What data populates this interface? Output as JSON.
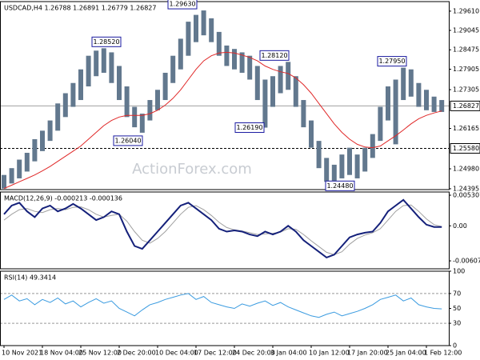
{
  "chart_data": [
    {
      "type": "candlestick",
      "title": "USDCAD,H4  1.26788 1.26891 1.26779 1.26827",
      "watermark": "ActionForex.com",
      "color": "#62788e",
      "high": [
        1.248,
        1.25,
        1.2525,
        1.2545,
        1.2585,
        1.261,
        1.264,
        1.269,
        1.272,
        1.275,
        1.279,
        1.283,
        1.2845,
        1.2852,
        1.284,
        1.28,
        1.274,
        1.268,
        1.266,
        1.27,
        1.273,
        1.278,
        1.283,
        1.288,
        1.293,
        1.295,
        1.2963,
        1.294,
        1.29,
        1.286,
        1.285,
        1.284,
        1.283,
        1.28,
        1.276,
        1.277,
        1.28,
        1.2812,
        1.277,
        1.27,
        1.264,
        1.258,
        1.253,
        1.251,
        1.254,
        1.256,
        1.254,
        1.256,
        1.26,
        1.268,
        1.274,
        1.276,
        1.2795,
        1.279,
        1.275,
        1.273,
        1.271,
        1.27
      ],
      "low": [
        1.244,
        1.2455,
        1.247,
        1.249,
        1.252,
        1.255,
        1.258,
        1.261,
        1.265,
        1.268,
        1.27,
        1.274,
        1.277,
        1.278,
        1.275,
        1.27,
        1.265,
        1.262,
        1.2604,
        1.264,
        1.267,
        1.27,
        1.275,
        1.279,
        1.283,
        1.287,
        1.289,
        1.287,
        1.283,
        1.28,
        1.279,
        1.278,
        1.276,
        1.27,
        1.2619,
        1.268,
        1.272,
        1.273,
        1.268,
        1.262,
        1.256,
        1.25,
        1.246,
        1.2448,
        1.247,
        1.248,
        1.247,
        1.249,
        1.253,
        1.258,
        1.264,
        1.257,
        1.27,
        1.271,
        1.268,
        1.267,
        1.2665,
        1.2665
      ],
      "ma_color": "#e02828",
      "ma_values": [
        1.244,
        1.245,
        1.246,
        1.247,
        1.248,
        1.2492,
        1.2505,
        1.252,
        1.2535,
        1.255,
        1.2565,
        1.2585,
        1.2605,
        1.2625,
        1.264,
        1.265,
        1.2655,
        1.2655,
        1.2655,
        1.266,
        1.267,
        1.2685,
        1.2705,
        1.273,
        1.276,
        1.279,
        1.2815,
        1.283,
        1.2838,
        1.284,
        1.2838,
        1.2832,
        1.2825,
        1.2815,
        1.28,
        1.279,
        1.2783,
        1.2778,
        1.2765,
        1.2745,
        1.272,
        1.269,
        1.266,
        1.263,
        1.2605,
        1.2585,
        1.257,
        1.2562,
        1.256,
        1.2565,
        1.258,
        1.2595,
        1.2612,
        1.263,
        1.2645,
        1.2655,
        1.2662,
        1.2668
      ],
      "ylim": [
        1.2437,
        1.2989
      ],
      "yticks": [
        {
          "value": 1.2961,
          "label": "1.29610"
        },
        1.29045,
        1.28475,
        1.27905,
        1.27305,
        1.26165,
        {
          "value": 1.2498,
          "label": "1.24980"
        },
        1.24395
      ],
      "current_price": {
        "value": 1.26827,
        "label": "1.26827"
      },
      "level": {
        "value": 1.2558,
        "label": "1.25580"
      },
      "annotations": [
        {
          "value": 1.2852,
          "label": "1.28520"
        },
        {
          "value": 1.2604,
          "label": "1.26040"
        },
        {
          "value": 1.2963,
          "label": "1.29630"
        },
        {
          "value": 1.2619,
          "label": "1.26190"
        },
        {
          "value": 1.2812,
          "label": "1.28120"
        },
        {
          "value": 1.2448,
          "label": "1.24480"
        },
        {
          "value": 1.2795,
          "label": "1.27950"
        }
      ]
    },
    {
      "type": "macd",
      "title": "MACD(12,26,9) -0.000213 -0.000136",
      "main_color": "#14207a",
      "signal_color": "#a0a0a0",
      "main": [
        0.002,
        0.0035,
        0.004,
        0.0025,
        0.0015,
        0.003,
        0.0035,
        0.0025,
        0.003,
        0.0038,
        0.003,
        0.002,
        0.001,
        0.0015,
        0.0025,
        0.002,
        -0.001,
        -0.0035,
        -0.004,
        -0.0025,
        -0.001,
        0.0005,
        0.002,
        0.0035,
        0.004,
        0.003,
        0.002,
        0.001,
        -0.0005,
        -0.001,
        -0.0008,
        -0.001,
        -0.0015,
        -0.0018,
        -0.001,
        -0.0015,
        -0.001,
        0,
        -0.001,
        -0.0025,
        -0.0035,
        -0.0045,
        -0.0055,
        -0.005,
        -0.0035,
        -0.002,
        -0.0015,
        -0.0012,
        -0.001,
        0.0005,
        0.0025,
        0.0035,
        0.0045,
        0.003,
        0.0015,
        0.0002,
        -0.0002,
        -0.000213
      ],
      "signal": [
        0.001,
        0.002,
        0.0028,
        0.003,
        0.0025,
        0.0023,
        0.0028,
        0.003,
        0.0028,
        0.0032,
        0.0033,
        0.0028,
        0.002,
        0.0015,
        0.0018,
        0.002,
        0.0008,
        -0.001,
        -0.0025,
        -0.003,
        -0.0022,
        -0.001,
        0.0005,
        0.002,
        0.0032,
        0.0035,
        0.0028,
        0.0018,
        0.0006,
        -0.0003,
        -0.0007,
        -0.0009,
        -0.0012,
        -0.0015,
        -0.0014,
        -0.0013,
        -0.0011,
        -0.0005,
        -0.0006,
        -0.0015,
        -0.0026,
        -0.0036,
        -0.0046,
        -0.005,
        -0.0045,
        -0.0032,
        -0.0022,
        -0.0016,
        -0.0012,
        -0.0005,
        0.001,
        0.0025,
        0.0035,
        0.0036,
        0.0025,
        0.0012,
        0.0002,
        -0.000136
      ],
      "ylim": [
        -0.00745,
        0.00586
      ],
      "yticks": [
        0.005307,
        {
          "value": 0,
          "label": "0.00"
        },
        -0.006074
      ]
    },
    {
      "type": "rsi",
      "title": "RSI(14) 49.3414",
      "color": "#3a9be0",
      "values": [
        62,
        68,
        60,
        63,
        55,
        62,
        58,
        64,
        56,
        60,
        52,
        58,
        63,
        57,
        60,
        50,
        45,
        40,
        48,
        55,
        58,
        62,
        65,
        68,
        70,
        62,
        66,
        58,
        55,
        52,
        50,
        56,
        53,
        57,
        60,
        54,
        58,
        52,
        48,
        44,
        40,
        38,
        42,
        45,
        40,
        43,
        46,
        50,
        55,
        62,
        65,
        68,
        60,
        64,
        55,
        52,
        50,
        49.3414
      ],
      "ylim": [
        0,
        100
      ],
      "yticks": [
        100,
        70,
        50,
        30,
        0
      ],
      "levels": [
        70,
        30
      ],
      "categories": [
        "10 Nov 2021",
        null,
        null,
        null,
        null,
        "18 Nov 04:00",
        null,
        null,
        null,
        null,
        "25 Nov 12:00",
        null,
        null,
        null,
        null,
        "2 Dec 20:00",
        null,
        null,
        null,
        null,
        "10 Dec 04:00",
        null,
        null,
        null,
        null,
        "17 Dec 12:00",
        null,
        null,
        null,
        null,
        "24 Dec 20:00",
        null,
        null,
        null,
        null,
        "3 Jan 04:00",
        null,
        null,
        null,
        null,
        "10 Jan 12:00",
        null,
        null,
        null,
        null,
        "17 Jan 20:00",
        null,
        null,
        null,
        null,
        "25 Jan 04:00",
        null,
        null,
        null,
        null,
        "1 Feb 12:00",
        null,
        null
      ]
    }
  ]
}
